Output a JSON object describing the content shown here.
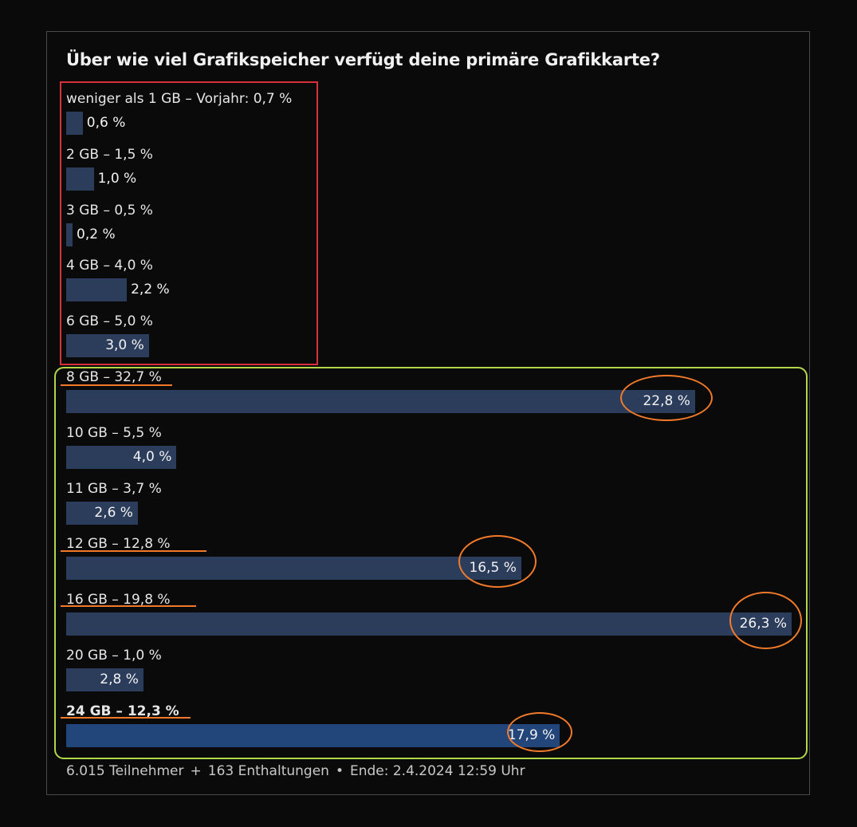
{
  "poll": {
    "title": "Über wie viel Grafikspeicher verfügt deine primäre Grafikkarte?",
    "footer": {
      "participants": "6.015 Teilnehmer",
      "plus": "+",
      "abstentions": "163 Enthaltungen",
      "dot": "•",
      "end": "Ende: 2.4.2024 12:59 Uhr"
    }
  },
  "chart_data": {
    "type": "bar",
    "orientation": "horizontal",
    "title": "Über wie viel Grafikspeicher verfügt deine primäre Grafikkarte?",
    "categories": [
      "weniger als 1 GB – Vorjahr: 0,7 %",
      "2 GB – 1,5 %",
      "3 GB – 0,5 %",
      "4 GB – 4,0 %",
      "6 GB – 5,0 %",
      "8 GB – 32,7 %",
      "10 GB – 5,5 %",
      "11 GB – 3,7 %",
      "12 GB – 12,8 %",
      "16 GB – 19,8 %",
      "20 GB – 1,0 %",
      "24 GB – 12,3 %"
    ],
    "values": [
      0.6,
      1.0,
      0.2,
      2.2,
      3.0,
      22.8,
      4.0,
      2.6,
      16.5,
      26.3,
      2.8,
      17.9
    ],
    "value_labels": [
      "0,6 %",
      "1,0 %",
      "0,2 %",
      "2,2 %",
      "3,0 %",
      "22,8 %",
      "4,0 %",
      "2,6 %",
      "16,5 %",
      "26,3 %",
      "2,8 %",
      "17,9 %"
    ],
    "xlim": [
      0,
      26.3
    ],
    "highlighted_option": "24 GB – 12,3 %",
    "colors": {
      "bar": "#2c3d5c",
      "bar_voted": "#224679",
      "background": "#0a0a0a"
    }
  },
  "annotations": {
    "red_box_color": "#d8303a",
    "green_box_color": "#b2d84a",
    "orange_mark_color": "#f07a2a"
  }
}
